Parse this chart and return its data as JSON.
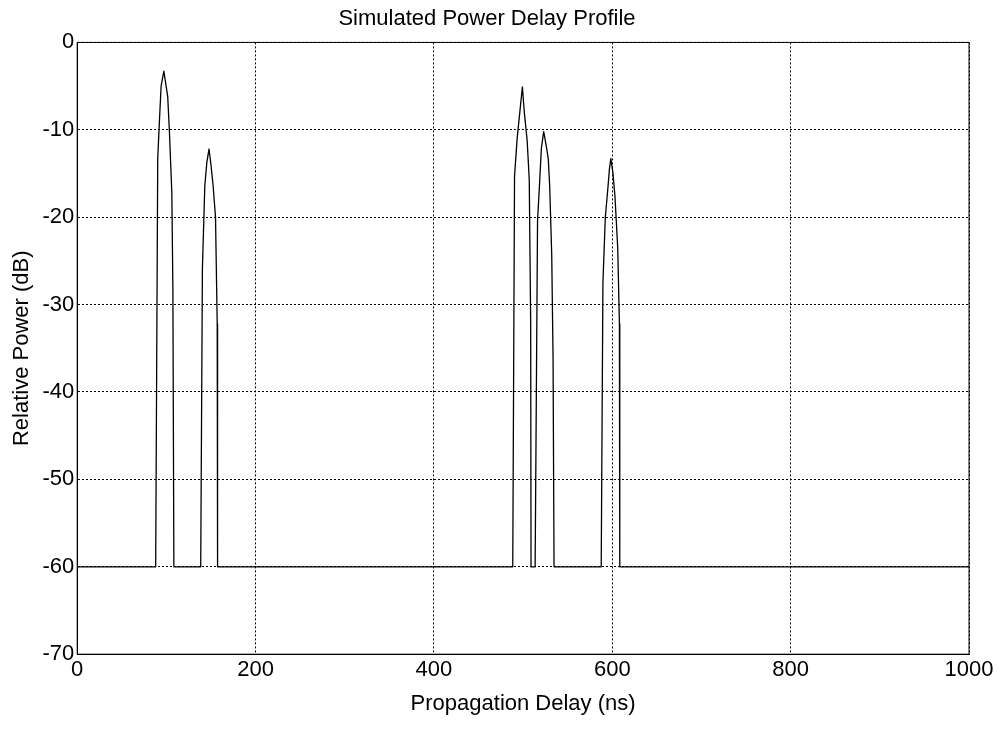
{
  "chart_data": {
    "type": "line",
    "title": "Simulated Power Delay Profile",
    "xlabel": "Propagation Delay (ns)",
    "ylabel": "Relative Power (dB)",
    "x": [
      0,
      88.0,
      90.3,
      92.2,
      94.1,
      97.2,
      101.5,
      103.4,
      106.1,
      107.3,
      108.4,
      138.5,
      140.4,
      143.1,
      145.4,
      147.8,
      150.1,
      152.4,
      155.1,
      157.0,
      157.4,
      488.4,
      490.4,
      493.4,
      496.5,
      499.2,
      501.2,
      504.6,
      506.9,
      508.5,
      508.9,
      513.5,
      516.2,
      518.5,
      520.5,
      523.1,
      525.9,
      528.2,
      529.8,
      532.1,
      533.6,
      534.7,
      587.6,
      589.5,
      592.2,
      595.3,
      596.8,
      598.4,
      600.7,
      603.0,
      606.1,
      608.0,
      608.4,
      1000
    ],
    "series": [
      {
        "color": "#000000",
        "values": [
          -60,
          -60,
          -13.3,
          -9,
          -5,
          -3.3,
          -6.2,
          -10.2,
          -17.2,
          -28.2,
          -60,
          -60,
          -25.9,
          -16.4,
          -13.7,
          -12.2,
          -14.1,
          -16.4,
          -20,
          -32.2,
          -60,
          -60,
          -15.3,
          -10.9,
          -7.8,
          -5.1,
          -7.8,
          -11.3,
          -15.7,
          -32.2,
          -60,
          -60,
          -20.4,
          -16.1,
          -12.1,
          -10.2,
          -11.8,
          -13.3,
          -16.4,
          -24.3,
          -36.1,
          -60,
          -60,
          -27.5,
          -20,
          -16.4,
          -14.5,
          -13.3,
          -14.9,
          -17.6,
          -23.5,
          -32.2,
          -60,
          -60
        ]
      }
    ],
    "xlim": [
      0,
      1000
    ],
    "xticks": [
      0,
      200,
      400,
      600,
      800,
      1000
    ],
    "ylim": [
      -70,
      0
    ],
    "yticks": [
      -70,
      -60,
      -50,
      -40,
      -30,
      -20,
      -10,
      0
    ],
    "grid": true,
    "legend": false,
    "marker": "none",
    "line_style": "solid"
  }
}
